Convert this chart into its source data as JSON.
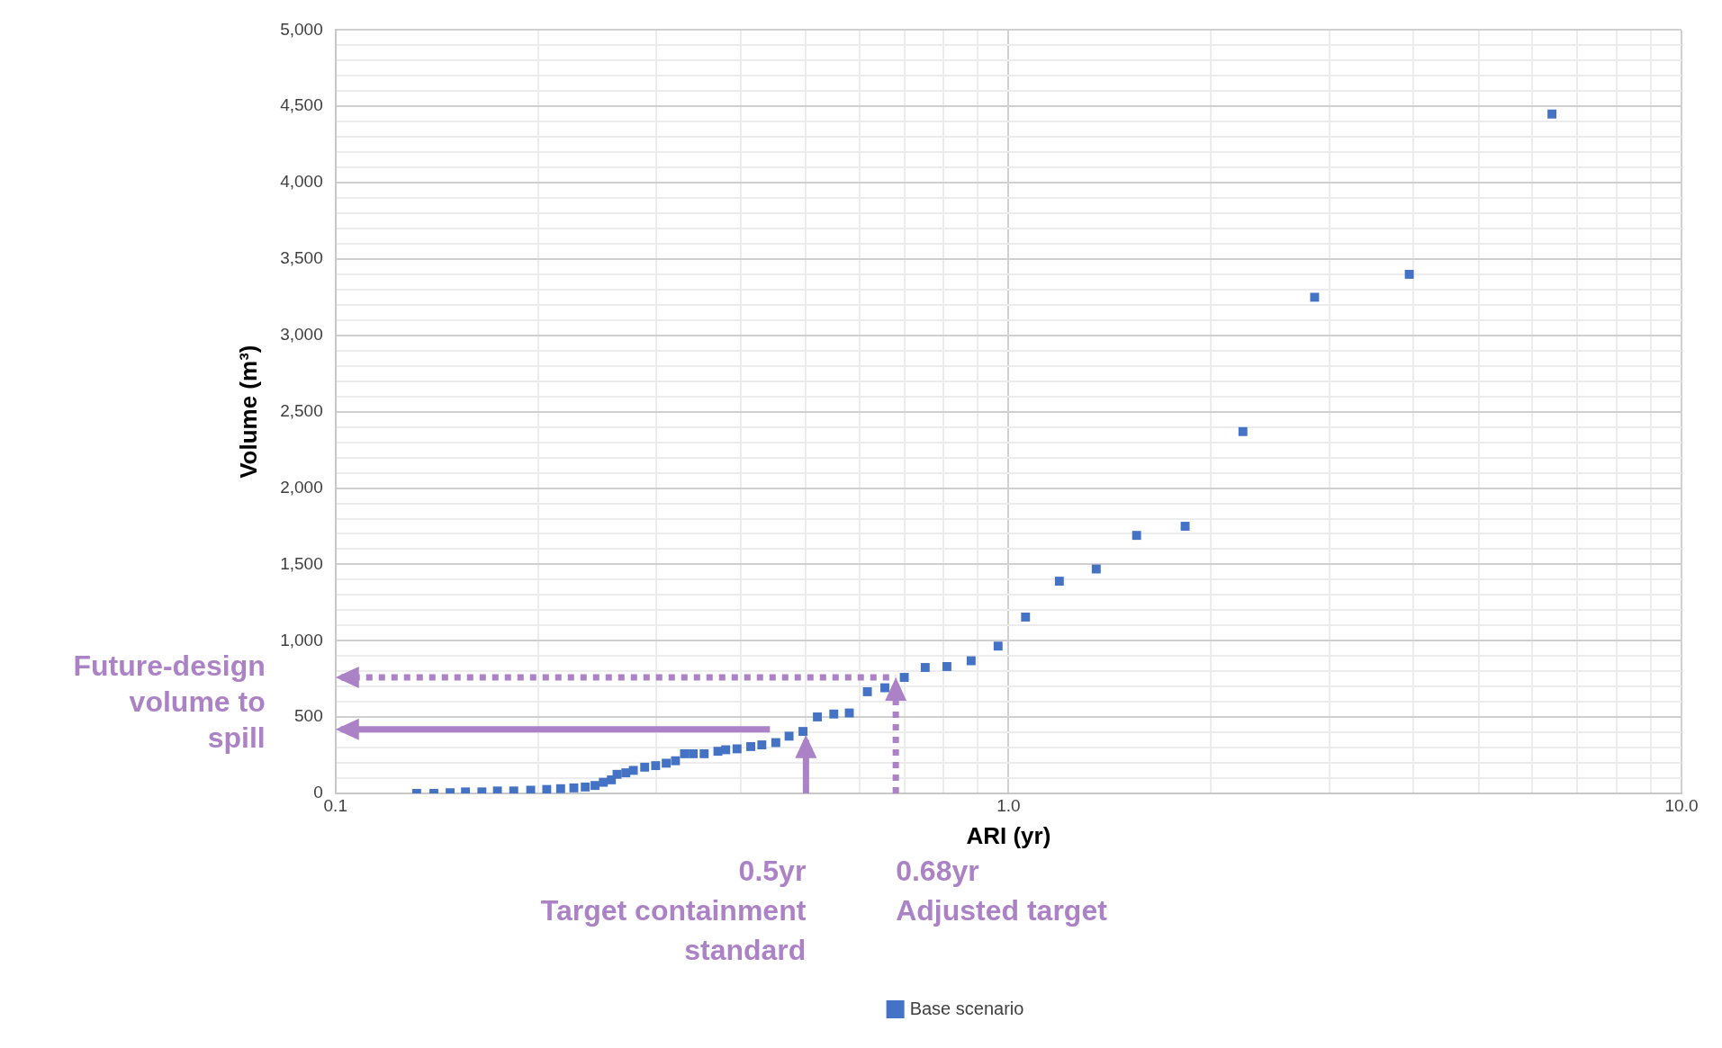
{
  "chart_data": {
    "type": "scatter",
    "xlabel": "ARI (yr)",
    "ylabel": "Volume (m³)",
    "log": "x",
    "marker": "square",
    "legend": "bottom",
    "grid": true,
    "xlim": [
      0.1,
      10
    ],
    "ylim": [
      0,
      5000
    ],
    "xticks": [
      {
        "value": 0.1,
        "label": "0.1"
      },
      {
        "value": 0.2,
        "label": null
      },
      {
        "value": 0.3,
        "label": null
      },
      {
        "value": 0.4,
        "label": null
      },
      {
        "value": 0.5,
        "label": null
      },
      {
        "value": 0.6,
        "label": null
      },
      {
        "value": 0.7,
        "label": null
      },
      {
        "value": 0.8,
        "label": null
      },
      {
        "value": 0.9,
        "label": null
      },
      {
        "value": 1,
        "label": "1.0"
      },
      {
        "value": 2,
        "label": null
      },
      {
        "value": 3,
        "label": null
      },
      {
        "value": 4,
        "label": null
      },
      {
        "value": 5,
        "label": null
      },
      {
        "value": 6,
        "label": null
      },
      {
        "value": 7,
        "label": null
      },
      {
        "value": 8,
        "label": null
      },
      {
        "value": 9,
        "label": null
      },
      {
        "value": 10,
        "label": "10.0"
      }
    ],
    "yticks": [
      {
        "value": 0,
        "label": "0"
      },
      {
        "value": 100,
        "label": null
      },
      {
        "value": 200,
        "label": null
      },
      {
        "value": 300,
        "label": null
      },
      {
        "value": 400,
        "label": null
      },
      {
        "value": 500,
        "label": "500"
      },
      {
        "value": 600,
        "label": null
      },
      {
        "value": 700,
        "label": null
      },
      {
        "value": 800,
        "label": null
      },
      {
        "value": 900,
        "label": null
      },
      {
        "value": 1000,
        "label": "1,000"
      },
      {
        "value": 1100,
        "label": null
      },
      {
        "value": 1200,
        "label": null
      },
      {
        "value": 1300,
        "label": null
      },
      {
        "value": 1400,
        "label": null
      },
      {
        "value": 1500,
        "label": "1,500"
      },
      {
        "value": 1600,
        "label": null
      },
      {
        "value": 1700,
        "label": null
      },
      {
        "value": 1800,
        "label": null
      },
      {
        "value": 1900,
        "label": null
      },
      {
        "value": 2000,
        "label": "2,000"
      },
      {
        "value": 2100,
        "label": null
      },
      {
        "value": 2200,
        "label": null
      },
      {
        "value": 2300,
        "label": null
      },
      {
        "value": 2400,
        "label": null
      },
      {
        "value": 2500,
        "label": "2,500"
      },
      {
        "value": 2600,
        "label": null
      },
      {
        "value": 2700,
        "label": null
      },
      {
        "value": 2800,
        "label": null
      },
      {
        "value": 2900,
        "label": null
      },
      {
        "value": 3000,
        "label": "3,000"
      },
      {
        "value": 3100,
        "label": null
      },
      {
        "value": 3200,
        "label": null
      },
      {
        "value": 3300,
        "label": null
      },
      {
        "value": 3400,
        "label": null
      },
      {
        "value": 3500,
        "label": "3,500"
      },
      {
        "value": 3600,
        "label": null
      },
      {
        "value": 3700,
        "label": null
      },
      {
        "value": 3800,
        "label": null
      },
      {
        "value": 3900,
        "label": null
      },
      {
        "value": 4000,
        "label": "4,000"
      },
      {
        "value": 4100,
        "label": null
      },
      {
        "value": 4200,
        "label": null
      },
      {
        "value": 4300,
        "label": null
      },
      {
        "value": 4400,
        "label": null
      },
      {
        "value": 4500,
        "label": "4,500"
      },
      {
        "value": 4600,
        "label": null
      },
      {
        "value": 4700,
        "label": null
      },
      {
        "value": 4800,
        "label": null
      },
      {
        "value": 4900,
        "label": null
      },
      {
        "value": 5000,
        "label": "5,000"
      }
    ],
    "series": [
      {
        "name": "Base scenario",
        "color": "#4472c4",
        "x": [
          0.132,
          0.14,
          0.148,
          0.156,
          0.165,
          0.174,
          0.184,
          0.195,
          0.206,
          0.216,
          0.226,
          0.235,
          0.243,
          0.25,
          0.257,
          0.262,
          0.27,
          0.277,
          0.288,
          0.299,
          0.31,
          0.32,
          0.33,
          0.34,
          0.353,
          0.37,
          0.38,
          0.395,
          0.414,
          0.43,
          0.451,
          0.472,
          0.495,
          0.52,
          0.55,
          0.58,
          0.617,
          0.655,
          0.7,
          0.752,
          0.81,
          0.88,
          0.965,
          1.06,
          1.19,
          1.35,
          1.55,
          1.83,
          2.23,
          2.85,
          3.94,
          6.42
        ],
        "values": [
          0,
          0,
          5,
          10,
          10,
          16,
          16,
          21,
          26,
          31,
          36,
          42,
          52,
          73,
          89,
          125,
          135,
          151,
          172,
          182,
          198,
          214,
          260,
          260,
          260,
          276,
          286,
          292,
          307,
          318,
          333,
          375,
          406,
          501,
          520,
          527,
          666,
          692,
          760,
          825,
          831,
          869,
          965,
          1155,
          1390,
          1470,
          1690,
          1750,
          2370,
          3250,
          3400,
          4450
        ]
      }
    ],
    "ref_lines": [
      {
        "axis": "x",
        "value": 0.68,
        "label": "0.68yr\nAdjusted target",
        "color": "#ab82c5",
        "line_style": "dotted"
      },
      {
        "axis": "y",
        "value": 420,
        "color": "#ab82c5",
        "line_style": "solid"
      },
      {
        "axis": "y",
        "value": 760,
        "color": "#ab82c5",
        "line_style": "dotted"
      }
    ],
    "annotations": [
      "Future-design volume to spill",
      "0.5yr\nTarget containment standard"
    ]
  }
}
